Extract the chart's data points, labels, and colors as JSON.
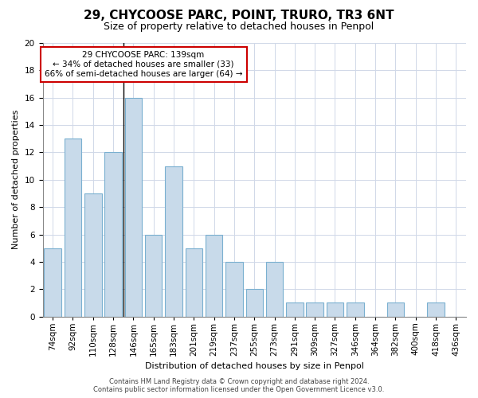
{
  "title": "29, CHYCOOSE PARC, POINT, TRURO, TR3 6NT",
  "subtitle": "Size of property relative to detached houses in Penpol",
  "xlabel": "Distribution of detached houses by size in Penpol",
  "ylabel": "Number of detached properties",
  "categories": [
    "74sqm",
    "92sqm",
    "110sqm",
    "128sqm",
    "146sqm",
    "165sqm",
    "183sqm",
    "201sqm",
    "219sqm",
    "237sqm",
    "255sqm",
    "273sqm",
    "291sqm",
    "309sqm",
    "327sqm",
    "346sqm",
    "364sqm",
    "382sqm",
    "400sqm",
    "418sqm",
    "436sqm"
  ],
  "values": [
    5,
    13,
    9,
    12,
    16,
    6,
    11,
    5,
    6,
    4,
    2,
    4,
    1,
    1,
    1,
    1,
    0,
    1,
    0,
    1,
    0
  ],
  "bar_color": "#c8daea",
  "bar_edge_color": "#7ab0d0",
  "annotation_text_line1": "29 CHYCOOSE PARC: 139sqm",
  "annotation_text_line2": "← 34% of detached houses are smaller (33)",
  "annotation_text_line3": "66% of semi-detached houses are larger (64) →",
  "annotation_box_edge_color": "#cc0000",
  "ylim": [
    0,
    20
  ],
  "yticks": [
    0,
    2,
    4,
    6,
    8,
    10,
    12,
    14,
    16,
    18,
    20
  ],
  "vline_index": 4,
  "footer_line1": "Contains HM Land Registry data © Crown copyright and database right 2024.",
  "footer_line2": "Contains public sector information licensed under the Open Government Licence v3.0.",
  "bg_color": "#ffffff",
  "grid_color": "#d0d8e8",
  "title_fontsize": 11,
  "subtitle_fontsize": 9,
  "axis_label_fontsize": 8,
  "tick_fontsize": 7.5,
  "annotation_fontsize": 7.5
}
